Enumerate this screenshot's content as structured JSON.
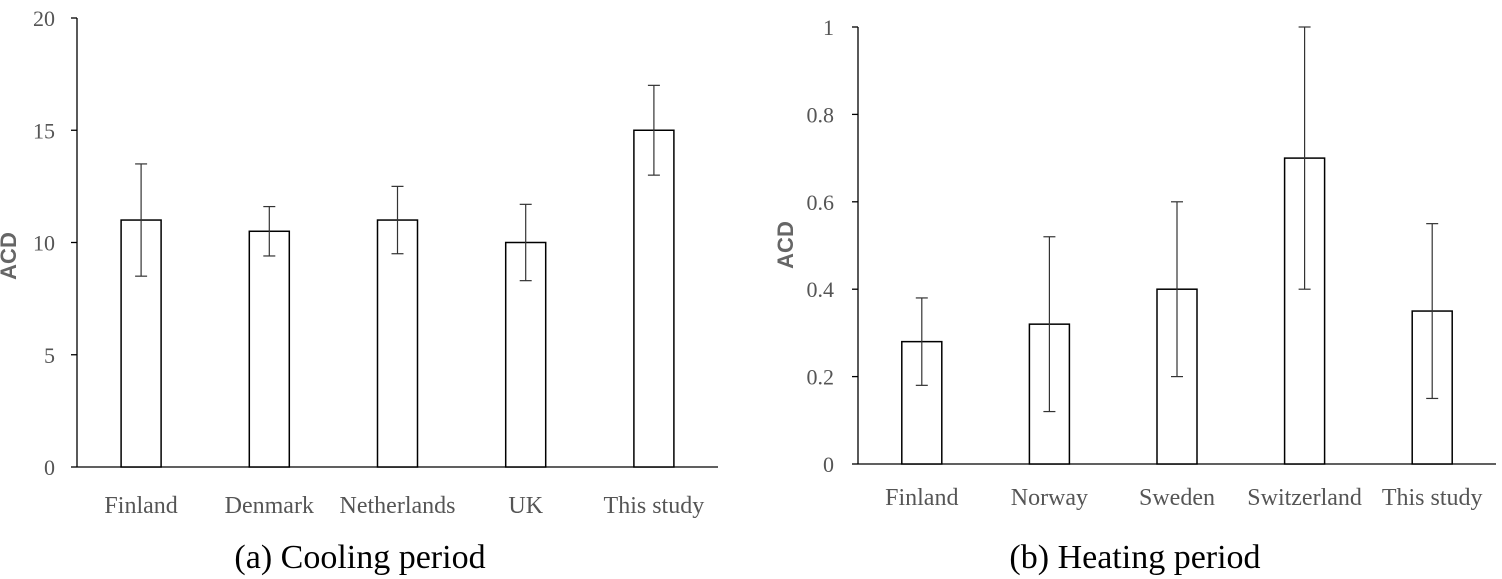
{
  "chart_data": [
    {
      "type": "bar",
      "title": "(a) Cooling period",
      "ylabel": "ACD",
      "xlabel": "",
      "ylim": [
        0,
        20
      ],
      "yticks": [
        "0",
        "5",
        "10",
        "15",
        "20"
      ],
      "categories": [
        "Finland",
        "Denmark",
        "Netherlands",
        "UK",
        "This study"
      ],
      "values": [
        11,
        10.5,
        11,
        10,
        15
      ],
      "error_low": [
        8.5,
        9.4,
        9.5,
        8.3,
        13
      ],
      "error_high": [
        13.5,
        11.6,
        12.5,
        11.7,
        17
      ],
      "grid": false,
      "legend": "none"
    },
    {
      "type": "bar",
      "title": "(b) Heating period",
      "ylabel": "ACD",
      "xlabel": "",
      "ylim": [
        0,
        1
      ],
      "yticks": [
        "0",
        "0.2",
        "0.4",
        "0.6",
        "0.8",
        "1"
      ],
      "categories": [
        "Finland",
        "Norway",
        "Sweden",
        "Switzerland",
        "This study"
      ],
      "values": [
        0.28,
        0.32,
        0.4,
        0.7,
        0.35
      ],
      "error_low": [
        0.18,
        0.12,
        0.2,
        0.4,
        0.15
      ],
      "error_high": [
        0.38,
        0.52,
        0.6,
        1.0,
        0.55
      ],
      "grid": false,
      "legend": "none"
    }
  ]
}
